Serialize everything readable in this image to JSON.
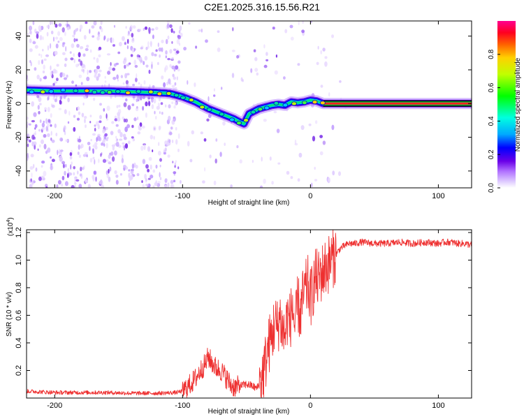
{
  "figure": {
    "title": "C2E1.2025.316.15.56.R21"
  },
  "chart_data": [
    {
      "type": "heatmap",
      "name": "spectrogram",
      "xlabel": "Height of straight line (km)",
      "ylabel": "Frequency (Hz)",
      "xlim": [
        -222,
        126
      ],
      "ylim": [
        -50,
        49
      ],
      "xticks": [
        -200,
        -100,
        0,
        100
      ],
      "xtick_labels": [
        "-200",
        "-100",
        "0",
        "100"
      ],
      "yticks": [
        -40,
        -20,
        0,
        20,
        40
      ],
      "ytick_labels": [
        "-40",
        "-20",
        "0",
        "20",
        "40"
      ],
      "ridge": {
        "x": [
          -222,
          -200,
          -180,
          -160,
          -140,
          -120,
          -110,
          -100,
          -90,
          -80,
          -70,
          -60,
          -55,
          -52,
          -48,
          -44,
          -40,
          -35,
          -30,
          -25,
          -20,
          -15,
          -10,
          -5,
          0,
          5,
          10,
          20,
          40,
          60,
          80,
          100,
          126
        ],
        "y": [
          8,
          7.5,
          7.5,
          7.5,
          7,
          6.5,
          6,
          4,
          1,
          -3,
          -6,
          -9,
          -11,
          -12,
          -6,
          -4.5,
          -3,
          -2,
          -1,
          -0.5,
          -1,
          1,
          0.5,
          1,
          2,
          1.5,
          0,
          0,
          0,
          0,
          0,
          0,
          0
        ]
      },
      "colorbar": {
        "label": "Normalized spectral amplitude",
        "range": [
          0,
          1
        ],
        "ticks": [
          0.0,
          0.2,
          0.4,
          0.6,
          0.8
        ],
        "tick_labels": [
          "0.0",
          "0.2",
          "0.4",
          "0.6",
          "0.8"
        ]
      }
    },
    {
      "type": "line",
      "name": "snr",
      "xlabel": "Height of straight line (km)",
      "ylabel": "SNR (10 * v/v)",
      "y_multiplier": "(x10",
      "y_multiplier_exp": "4",
      "y_multiplier_close": ")",
      "xlim": [
        -222,
        126
      ],
      "ylim": [
        0,
        1.22
      ],
      "xticks": [
        -200,
        -100,
        0,
        100
      ],
      "xtick_labels": [
        "-200",
        "-100",
        "0",
        "100"
      ],
      "yticks": [
        0.2,
        0.4,
        0.6,
        0.8,
        1.0,
        1.2
      ],
      "ytick_labels": [
        "0.2",
        "0.4",
        "0.6",
        "0.8",
        "1.0",
        "1.2"
      ],
      "color": "#ee3030",
      "x": [
        -222,
        -200,
        -180,
        -160,
        -140,
        -120,
        -105,
        -100,
        -95,
        -90,
        -86,
        -82,
        -80,
        -78,
        -74,
        -70,
        -66,
        -62,
        -58,
        -54,
        -50,
        -46,
        -42,
        -40,
        -38,
        -36,
        -34,
        -32,
        -30,
        -28,
        -26,
        -24,
        -22,
        -20,
        -18,
        -16,
        -14,
        -12,
        -10,
        -8,
        -6,
        -4,
        -2,
        0,
        2,
        4,
        6,
        8,
        10,
        12,
        14,
        16,
        18,
        20,
        22,
        24,
        26,
        28,
        30,
        35,
        40,
        50,
        60,
        70,
        80,
        90,
        100,
        105,
        110,
        115,
        120,
        126
      ],
      "y": [
        0.05,
        0.04,
        0.04,
        0.04,
        0.035,
        0.035,
        0.04,
        0.05,
        0.09,
        0.14,
        0.2,
        0.25,
        0.3,
        0.27,
        0.22,
        0.2,
        0.15,
        0.09,
        0.08,
        0.09,
        0.1,
        0.09,
        0.07,
        0.1,
        0.15,
        0.22,
        0.32,
        0.4,
        0.45,
        0.55,
        0.5,
        0.6,
        0.5,
        0.45,
        0.6,
        0.55,
        0.68,
        0.48,
        0.7,
        0.6,
        0.72,
        0.78,
        0.82,
        0.72,
        0.8,
        0.88,
        0.85,
        0.9,
        0.92,
        0.95,
        0.97,
        1.0,
        1.02,
        1.04,
        1.07,
        1.09,
        1.1,
        1.11,
        1.12,
        1.12,
        1.13,
        1.12,
        1.12,
        1.13,
        1.12,
        1.13,
        1.12,
        1.13,
        1.13,
        1.12,
        1.12,
        1.11
      ]
    }
  ]
}
